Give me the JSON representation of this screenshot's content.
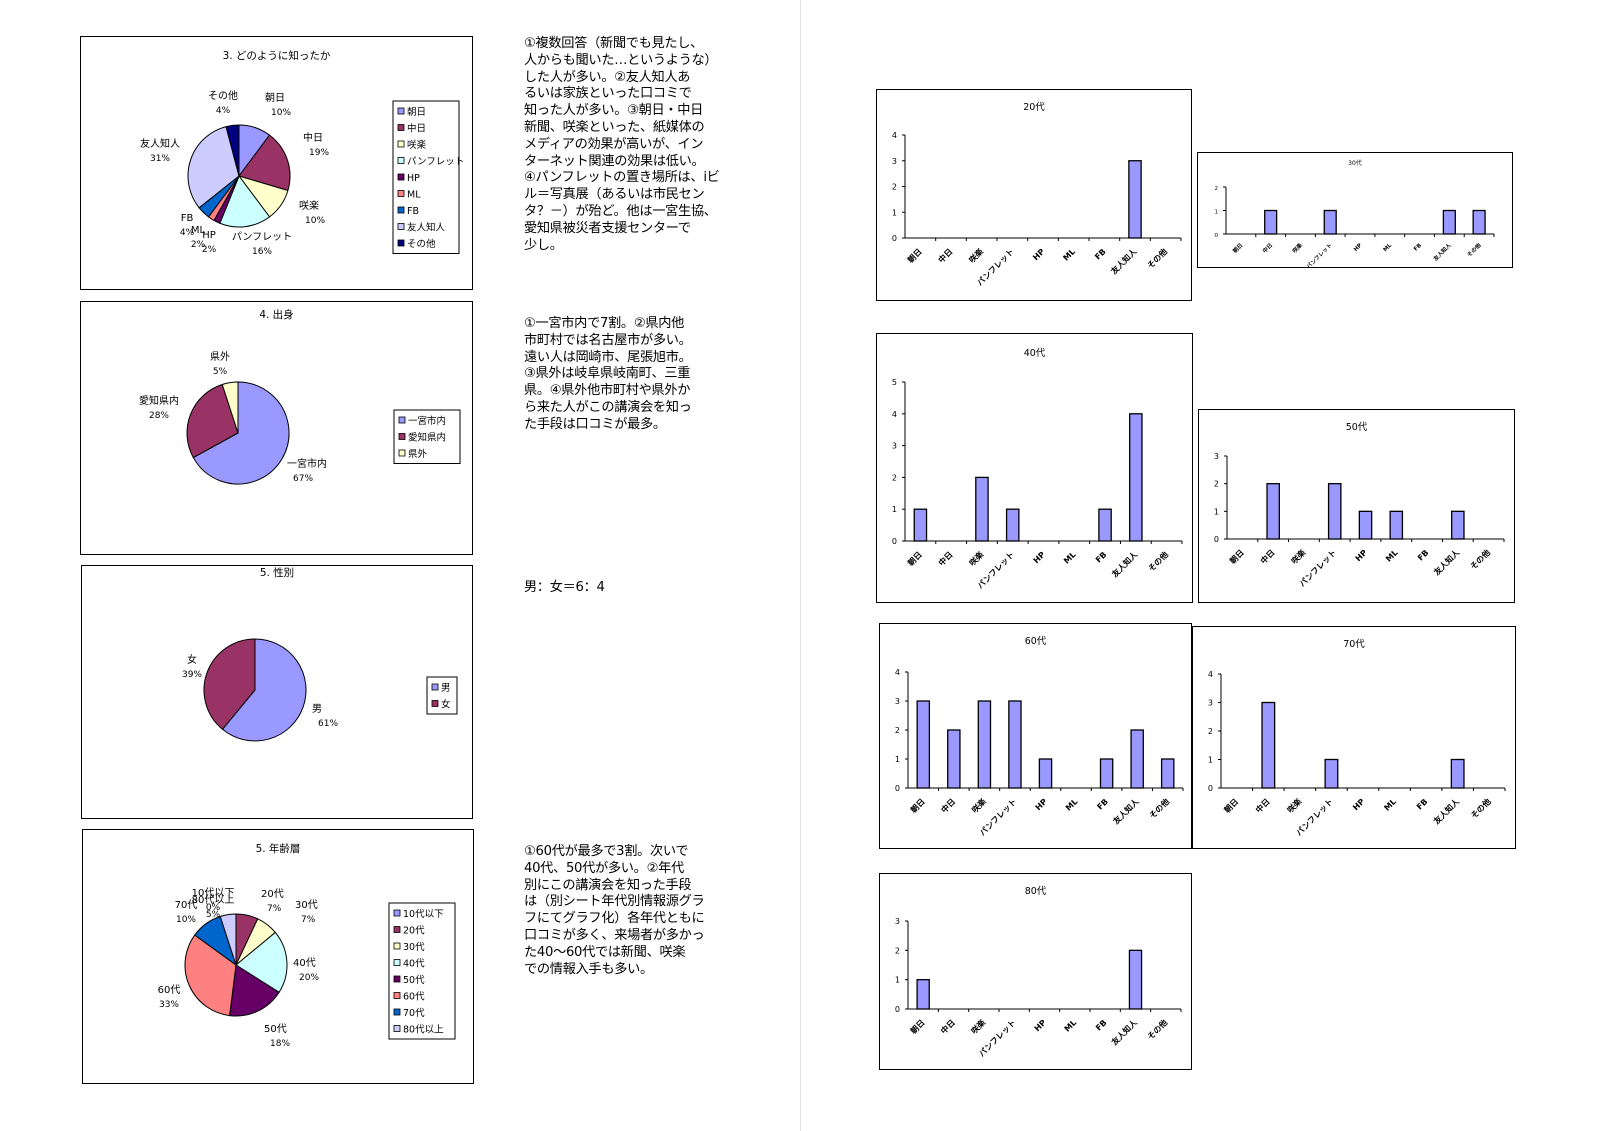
{
  "colors": {
    "bar_fill": "#9999ff",
    "bar_stroke": "#000000",
    "pie_palette": [
      "#9999ff",
      "#993366",
      "#ffffcc",
      "#ccffff",
      "#660066",
      "#ff8080",
      "#0066cc",
      "#ccccff",
      "#000080"
    ]
  },
  "comments": {
    "howknown": "①複数回答（新聞でも見たし、\n人からも聞いた…というような）\nした人が多い。②友人知人あ\nるいは家族といった口コミで\n知った人が多い。③朝日・中日\n新聞、咲楽といった、紙媒体の\nメディアの効果が高いが、イン\nターネット関連の効果は低い。\n④パンフレットの置き場所は、iビ\nル＝写真展（あるいは市民セン\nタ？－）が殆ど。他は一宮生協、\n愛知県被災者支援センターで\n少し。",
    "origin": "①一宮市内で7割。②県内他\n市町村では名古屋市が多い。\n遠い人は岡崎市、尾張旭市。\n③県外は岐阜県岐南町、三重\n県。④県外他市町村や県外か\nら来た人がこの講演会を知っ\nた手段は口コミが最多。",
    "gender": "男：女＝6：4",
    "age": "①60代が最多で3割。次いで\n40代、50代が多い。②年代\n別にこの講演会を知った手段\nは（別シート年代別情報源グラ\nフにてグラフ化）各年代ともに\n口コミが多く、来場者が多かっ\nた40～60代では新聞、咲楽\nでの情報入手も多い。"
  },
  "chart_data": [
    {
      "id": "how-known",
      "type": "pie",
      "title": "3. どのように知ったか",
      "legend_position": "right",
      "slices": [
        {
          "label": "朝日",
          "pct": "10%",
          "value": 10
        },
        {
          "label": "中日",
          "pct": "19%",
          "value": 19
        },
        {
          "label": "咲楽",
          "pct": "10%",
          "value": 10
        },
        {
          "label": "パンフレット",
          "pct": "16%",
          "value": 16
        },
        {
          "label": "HP",
          "pct": "2%",
          "value": 2
        },
        {
          "label": "ML",
          "pct": "2%",
          "value": 2
        },
        {
          "label": "FB",
          "pct": "4%",
          "value": 4
        },
        {
          "label": "友人知人",
          "pct": "31%",
          "value": 31
        },
        {
          "label": "その他",
          "pct": "4%",
          "value": 4
        }
      ]
    },
    {
      "id": "origin",
      "type": "pie",
      "title": "4. 出身",
      "legend_position": "right",
      "slices": [
        {
          "label": "一宮市内",
          "pct": "67%",
          "value": 67
        },
        {
          "label": "愛知県内",
          "pct": "28%",
          "value": 28
        },
        {
          "label": "県外",
          "pct": "5%",
          "value": 5
        }
      ]
    },
    {
      "id": "gender",
      "type": "pie",
      "title": "5. 性別",
      "legend_position": "right",
      "slices": [
        {
          "label": "男",
          "pct": "61%",
          "value": 61
        },
        {
          "label": "女",
          "pct": "39%",
          "value": 39
        }
      ]
    },
    {
      "id": "age",
      "type": "pie",
      "title": "5. 年齢層",
      "legend_position": "right",
      "slices": [
        {
          "label": "10代以下",
          "pct": "0%",
          "value": 0
        },
        {
          "label": "20代",
          "pct": "7%",
          "value": 7
        },
        {
          "label": "30代",
          "pct": "7%",
          "value": 7
        },
        {
          "label": "40代",
          "pct": "20%",
          "value": 20
        },
        {
          "label": "50代",
          "pct": "18%",
          "value": 18
        },
        {
          "label": "60代",
          "pct": "33%",
          "value": 33
        },
        {
          "label": "70代",
          "pct": "10%",
          "value": 10
        },
        {
          "label": "80代以上",
          "pct": "5%",
          "value": 5
        }
      ]
    },
    {
      "id": "bar-20s",
      "type": "bar",
      "title": "20代",
      "categories": [
        "朝日",
        "中日",
        "咲楽",
        "パンフレット",
        "HP",
        "ML",
        "FB",
        "友人知人",
        "その他"
      ],
      "values": [
        0,
        0,
        0,
        0,
        0,
        0,
        0,
        3,
        0
      ],
      "ylim": [
        0,
        4
      ]
    },
    {
      "id": "bar-30s",
      "type": "bar",
      "title": "30代",
      "categories": [
        "朝日",
        "中日",
        "咲楽",
        "パンフレット",
        "HP",
        "ML",
        "FB",
        "友人知人",
        "その他"
      ],
      "values": [
        0,
        1,
        0,
        1,
        0,
        0,
        0,
        1,
        1
      ],
      "ylim": [
        0,
        2
      ]
    },
    {
      "id": "bar-40s",
      "type": "bar",
      "title": "40代",
      "categories": [
        "朝日",
        "中日",
        "咲楽",
        "パンフレット",
        "HP",
        "ML",
        "FB",
        "友人知人",
        "その他"
      ],
      "values": [
        1,
        0,
        2,
        1,
        0,
        0,
        1,
        4,
        0
      ],
      "ylim": [
        0,
        5
      ]
    },
    {
      "id": "bar-50s",
      "type": "bar",
      "title": "50代",
      "categories": [
        "朝日",
        "中日",
        "咲楽",
        "パンフレット",
        "HP",
        "ML",
        "FB",
        "友人知人",
        "その他"
      ],
      "values": [
        0,
        2,
        0,
        2,
        1,
        1,
        0,
        1,
        0
      ],
      "ylim": [
        0,
        3
      ]
    },
    {
      "id": "bar-60s",
      "type": "bar",
      "title": "60代",
      "categories": [
        "朝日",
        "中日",
        "咲楽",
        "パンフレット",
        "HP",
        "ML",
        "FB",
        "友人知人",
        "その他"
      ],
      "values": [
        3,
        2,
        3,
        3,
        1,
        0,
        1,
        2,
        1
      ],
      "ylim": [
        0,
        4
      ]
    },
    {
      "id": "bar-70s",
      "type": "bar",
      "title": "70代",
      "categories": [
        "朝日",
        "中日",
        "咲楽",
        "パンフレット",
        "HP",
        "ML",
        "FB",
        "友人知人",
        "その他"
      ],
      "values": [
        0,
        3,
        0,
        1,
        0,
        0,
        0,
        1,
        0
      ],
      "ylim": [
        0,
        4
      ]
    },
    {
      "id": "bar-80s",
      "type": "bar",
      "title": "80代",
      "categories": [
        "朝日",
        "中日",
        "咲楽",
        "パンフレット",
        "HP",
        "ML",
        "FB",
        "友人知人",
        "その他"
      ],
      "values": [
        1,
        0,
        0,
        0,
        0,
        0,
        0,
        2,
        0
      ],
      "ylim": [
        0,
        3
      ]
    }
  ]
}
